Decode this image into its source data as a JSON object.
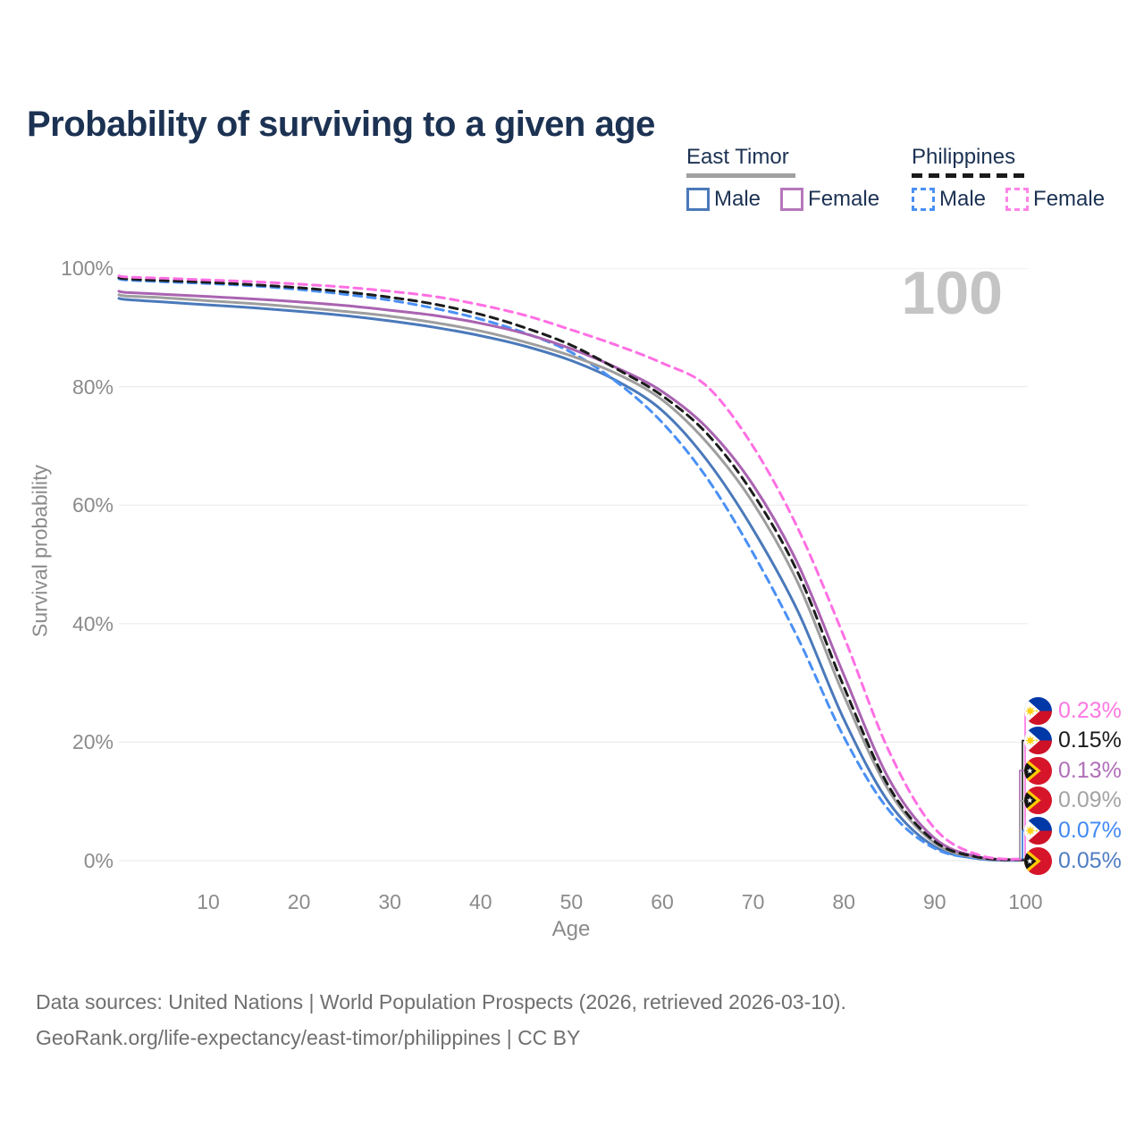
{
  "title": "Probability of surviving to a given age",
  "legend": {
    "groups": [
      {
        "label": "East Timor",
        "line_style": "solid",
        "underline_color": "#a0a0a0",
        "items": [
          {
            "label": "Male",
            "color": "#4a79ba"
          },
          {
            "label": "Female",
            "color": "#b577bb"
          }
        ]
      },
      {
        "label": "Philippines",
        "line_style": "dashed",
        "underline_color": "#1a1a1a",
        "items": [
          {
            "label": "Male",
            "color": "#4a90f5"
          },
          {
            "label": "Female",
            "color": "#ff84e8"
          }
        ]
      }
    ]
  },
  "footer": {
    "line1": "Data sources: United Nations | World Population Prospects (2026, retrieved 2026-03-10).",
    "line2": "GeoRank.org/life-expectancy/east-timor/philippines | CC BY"
  },
  "chart_data": {
    "type": "line",
    "title": "Probability of surviving to a given age",
    "xlabel": "Age",
    "ylabel": "Survival probability",
    "xlim": [
      0,
      100
    ],
    "ylim": [
      0,
      100
    ],
    "grid": "horizontal",
    "age_annotation": "100",
    "x_ticks": [
      "10",
      "20",
      "30",
      "40",
      "50",
      "60",
      "70",
      "80",
      "90",
      "100"
    ],
    "y_ticks_top_to_bottom": [
      "100%",
      "80%",
      "60%",
      "40%",
      "20%",
      "0%"
    ],
    "ages": [
      1,
      5,
      10,
      15,
      20,
      25,
      30,
      35,
      40,
      45,
      50,
      55,
      60,
      65,
      70,
      75,
      80,
      85,
      90,
      95,
      100
    ],
    "series": [
      {
        "name": "Philippines Female",
        "flag": "ph",
        "dash": true,
        "color": "#ff6fe3",
        "label_color": "#ff77e1",
        "end_label": "0.23%",
        "values": [
          98.5,
          98.3,
          98.0,
          97.7,
          97.3,
          96.8,
          96.1,
          95.2,
          93.8,
          92.0,
          89.6,
          87.0,
          84.0,
          80.0,
          70.0,
          56.0,
          38.0,
          18.5,
          5.5,
          0.9,
          0.23
        ]
      },
      {
        "name": "Philippines",
        "flag": "ph",
        "dash": true,
        "color": "#1c1c1c",
        "label_color": "#1a1a1a",
        "end_label": "0.15%",
        "values": [
          98.2,
          97.9,
          97.6,
          97.2,
          96.7,
          96.0,
          95.1,
          93.9,
          92.2,
          89.9,
          87.0,
          83.0,
          78.5,
          72.0,
          62.0,
          48.5,
          29.5,
          12.5,
          3.3,
          0.55,
          0.15
        ]
      },
      {
        "name": "East Timor Female",
        "flag": "tl",
        "dash": false,
        "color": "#aa63b1",
        "label_color": "#b06fb8",
        "end_label": "0.13%",
        "values": [
          95.9,
          95.6,
          95.2,
          94.8,
          94.3,
          93.7,
          92.9,
          92.0,
          90.7,
          88.9,
          86.4,
          83.2,
          79.2,
          73.0,
          63.5,
          50.0,
          31.5,
          13.8,
          3.8,
          0.6,
          0.13
        ]
      },
      {
        "name": "East Timor",
        "flag": "tl",
        "dash": false,
        "color": "#9e9e9e",
        "label_color": "#a3a3a3",
        "end_label": "0.09%",
        "values": [
          95.3,
          95.0,
          94.5,
          94.0,
          93.4,
          92.7,
          91.9,
          90.8,
          89.4,
          87.5,
          85.2,
          82.2,
          77.8,
          70.5,
          60.5,
          46.8,
          28.0,
          11.8,
          3.0,
          0.45,
          0.09
        ]
      },
      {
        "name": "Philippines Male",
        "flag": "ph",
        "dash": true,
        "color": "#4a90f5",
        "label_color": "#4189f2",
        "end_label": "0.07%",
        "values": [
          98.0,
          97.7,
          97.4,
          97.0,
          96.4,
          95.6,
          94.6,
          93.2,
          91.4,
          89.0,
          85.8,
          80.8,
          74.0,
          64.5,
          52.0,
          37.5,
          21.0,
          8.5,
          2.1,
          0.35,
          0.07
        ]
      },
      {
        "name": "East Timor Male",
        "flag": "tl",
        "dash": false,
        "color": "#4a79ba",
        "label_color": "#4f7dc3",
        "end_label": "0.05%",
        "values": [
          94.7,
          94.3,
          93.8,
          93.3,
          92.7,
          92.0,
          91.1,
          90.0,
          88.6,
          86.8,
          84.4,
          81.0,
          76.0,
          67.5,
          56.0,
          42.0,
          24.0,
          9.8,
          2.4,
          0.3,
          0.05
        ]
      }
    ]
  }
}
